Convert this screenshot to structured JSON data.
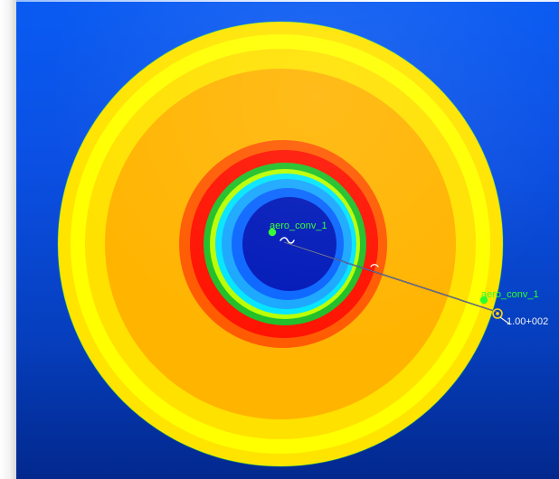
{
  "viewport": {
    "background_colors": [
      "#0a5bf2",
      "#02288d"
    ],
    "contour_colors": {
      "outer_yellow": "#ffe400",
      "yellow": "#ffff00",
      "light_orange": "#ffb400",
      "orange": "#ffad00",
      "red_orange": "#ff5a00",
      "red": "#ff1200",
      "green": "#1fbf27",
      "cyan": "#00e5ff",
      "light_blue": "#18a7ff",
      "blue": "#0a66ff",
      "dark_blue": "#0018b8"
    }
  },
  "annotations": [
    {
      "label": "aero_conv_1"
    },
    {
      "label": "aero_conv_1",
      "value": "1.00+002"
    }
  ]
}
